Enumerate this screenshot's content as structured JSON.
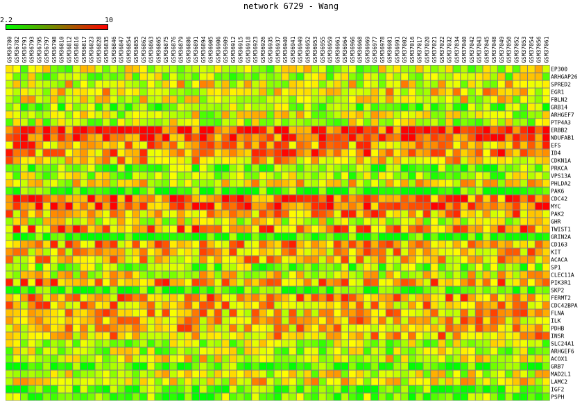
{
  "title": "network 6729 - Wang",
  "color_scale": {
    "min_label": "2.2",
    "max_label": "10",
    "low_color": "#00ff00",
    "high_color": "#ff0000"
  },
  "chart_data": {
    "type": "heatmap",
    "title": "network 6729 - Wang",
    "value_range": [
      2.2,
      10
    ],
    "columns": [
      "GSM36780",
      "GSM36782",
      "GSM36791",
      "GSM36793",
      "GSM36795",
      "GSM36797",
      "GSM36798",
      "GSM36810",
      "GSM36812",
      "GSM36816",
      "GSM36817",
      "GSM36823",
      "GSM36828",
      "GSM36835",
      "GSM36846",
      "GSM36847",
      "GSM36854",
      "GSM36855",
      "GSM36862",
      "GSM36863",
      "GSM36865",
      "GSM36875",
      "GSM36876",
      "GSM36879",
      "GSM36886",
      "GSM36891",
      "GSM36894",
      "GSM36905",
      "GSM36906",
      "GSM36909",
      "GSM36912",
      "GSM36915",
      "GSM36918",
      "GSM36923",
      "GSM36926",
      "GSM36935",
      "GSM36937",
      "GSM36940",
      "GSM36941",
      "GSM36949",
      "GSM36952",
      "GSM36953",
      "GSM36955",
      "GSM36959",
      "GSM36961",
      "GSM36964",
      "GSM36966",
      "GSM36968",
      "GSM36969",
      "GSM36977",
      "GSM36978",
      "GSM36981",
      "GSM36991",
      "GSM37002",
      "GSM37016",
      "GSM37017",
      "GSM37020",
      "GSM37021",
      "GSM37022",
      "GSM37032",
      "GSM37034",
      "GSM37040",
      "GSM37042",
      "GSM37043",
      "GSM37045",
      "GSM37048",
      "GSM37049",
      "GSM37050",
      "GSM37052",
      "GSM37053",
      "GSM37054",
      "GSM37056",
      "GSM37061"
    ],
    "rows": [
      "EP300",
      "ARHGAP26",
      "SPRED2",
      "EGR1",
      "FBLN2",
      "GRB14",
      "ARHGEF7",
      "PTP4A3",
      "ERBB2",
      "NDUFAB1",
      "EFS",
      "ID4",
      "CDKN1A",
      "PRKCA",
      "VPS13A",
      "PHLDA2",
      "PAK6",
      "CDC42",
      "MYC",
      "PAK2",
      "GHR",
      "TWIST1",
      "GRIN2A",
      "CD163",
      "KIT",
      "ACACA",
      "SP1",
      "CLEC11A",
      "PIK3R1",
      "SKP2",
      "FERMT2",
      "CDC42BPA",
      "FLNA",
      "ILK",
      "PDHB",
      "INSR",
      "SLC24A1",
      "ARHGEF6",
      "ACOX1",
      "GRB7",
      "MAD2L1",
      "LAMC2",
      "IGF2",
      "PSPH"
    ],
    "row_means": [
      5.2,
      5.0,
      6.0,
      6.3,
      5.8,
      4.2,
      5.4,
      5.1,
      9.2,
      9.0,
      7.6,
      7.8,
      6.9,
      3.7,
      4.8,
      6.0,
      3.2,
      8.4,
      8.6,
      7.4,
      5.6,
      7.7,
      2.9,
      7.4,
      7.0,
      7.0,
      4.3,
      6.0,
      7.6,
      3.0,
      7.4,
      7.2,
      7.0,
      7.0,
      7.0,
      7.1,
      5.1,
      5.0,
      5.8,
      3.5,
      5.5,
      6.2,
      3.5,
      4.0
    ],
    "note": "cell values estimated per row; individual cells vary around row_means"
  }
}
